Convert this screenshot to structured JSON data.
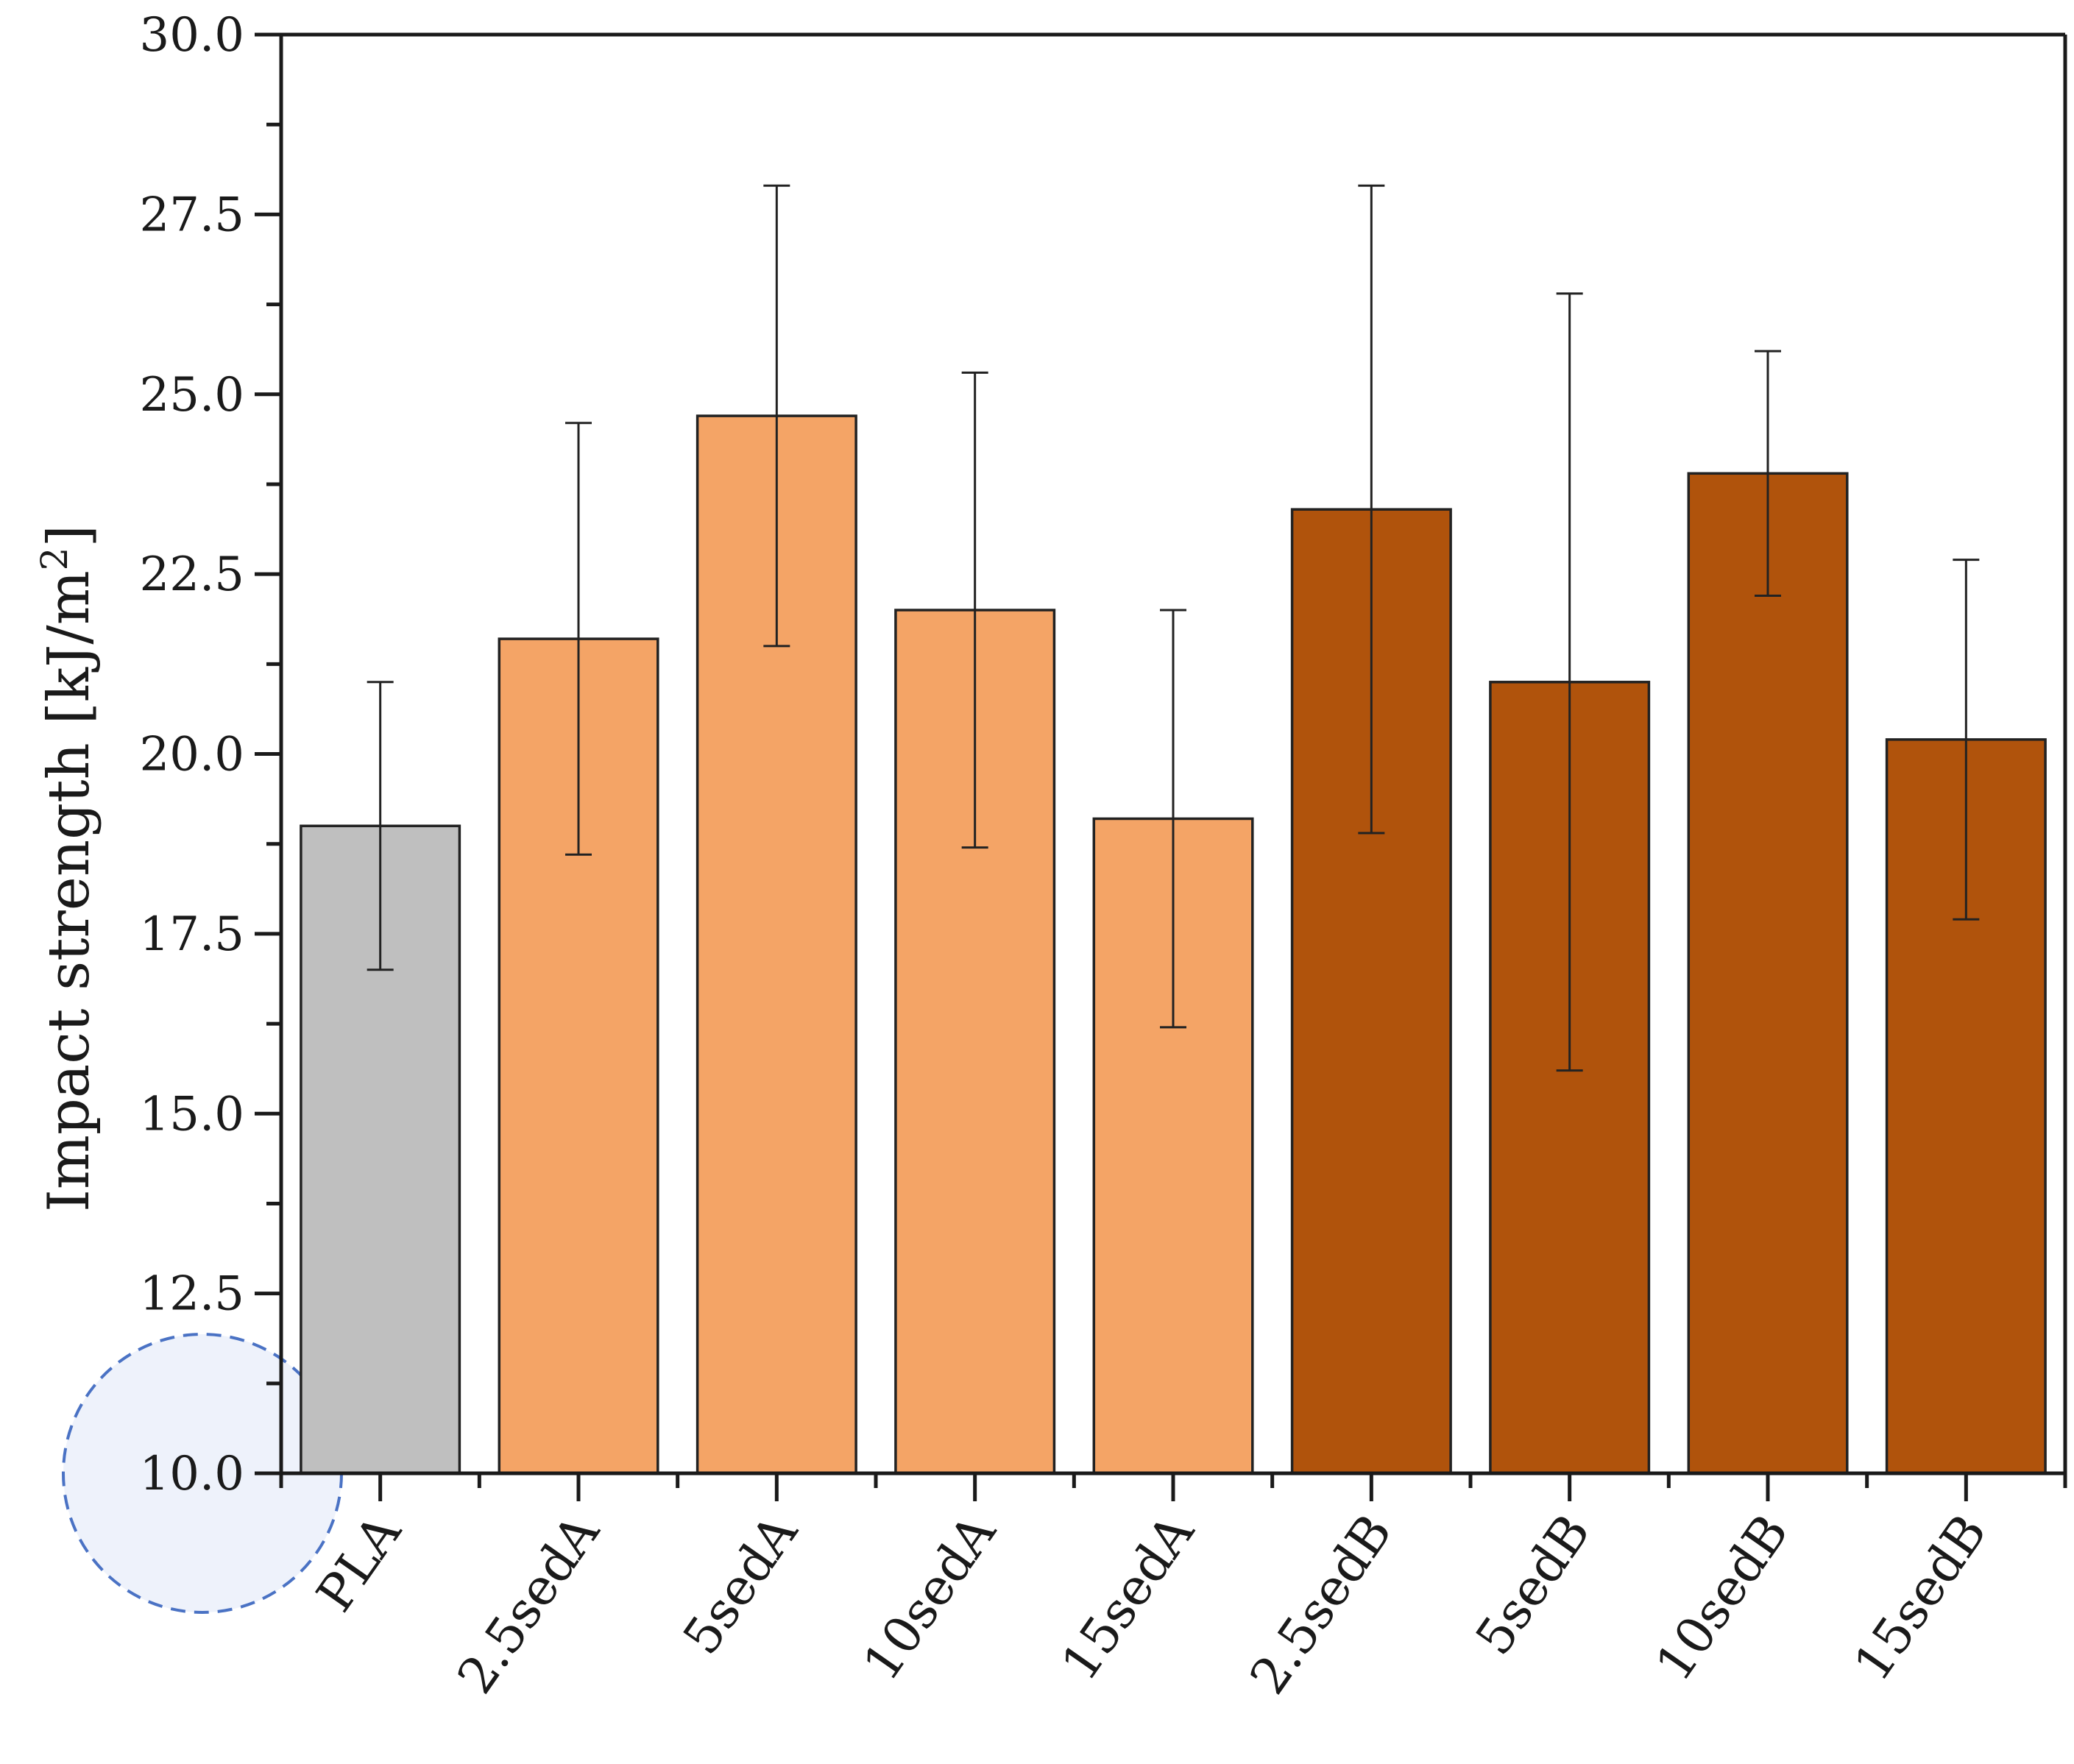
{
  "chart_data": {
    "type": "bar",
    "title": "",
    "xlabel": "",
    "ylabel": "Impact strength [kJ/m",
    "ylabel_superscript": "2",
    "ylabel_suffix": "]",
    "ylim": [
      10.0,
      30.0
    ],
    "yticks": [
      "10.0",
      "12.5",
      "15.0",
      "17.5",
      "20.0",
      "22.5",
      "25.0",
      "27.5",
      "30.0"
    ],
    "categories": [
      "PLA",
      "2.5sedA",
      "5sedA",
      "10sedA",
      "15sedA",
      "2.5sedB",
      "5sedB",
      "10sedB",
      "15sedB"
    ],
    "values": [
      19.0,
      21.6,
      24.7,
      22.0,
      19.1,
      23.4,
      21.0,
      23.9,
      20.2
    ],
    "errors": [
      2.0,
      3.0,
      3.2,
      3.3,
      2.9,
      4.5,
      5.4,
      1.7,
      2.5
    ],
    "colors": [
      "#bfbfbf",
      "#f4a466",
      "#f4a466",
      "#f4a466",
      "#f4a466",
      "#b0530c",
      "#b0530c",
      "#b0530c",
      "#b0530c"
    ],
    "grid": false,
    "legend": "none"
  }
}
